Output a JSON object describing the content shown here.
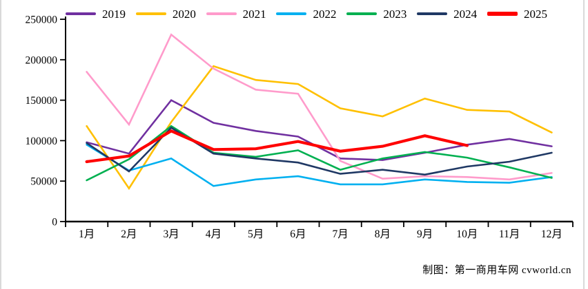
{
  "chart_data": {
    "type": "line",
    "title": "",
    "xlabel": "",
    "ylabel": "",
    "categories": [
      "1月",
      "2月",
      "3月",
      "4月",
      "5月",
      "6月",
      "7月",
      "8月",
      "9月",
      "10月",
      "11月",
      "12月"
    ],
    "y_ticks": [
      "0",
      "50000",
      "100000",
      "150000",
      "200000",
      "250000"
    ],
    "ylim": [
      0,
      250000
    ],
    "grid": false,
    "legend_position": "top",
    "series": [
      {
        "name": "2019",
        "color": "#7030A0",
        "values": [
          98000,
          84000,
          150000,
          122000,
          112000,
          105000,
          78000,
          76000,
          85000,
          95000,
          102000,
          93000
        ]
      },
      {
        "name": "2020",
        "color": "#FFC000",
        "values": [
          118000,
          41000,
          123000,
          192000,
          175000,
          170000,
          140000,
          130000,
          152000,
          138000,
          136000,
          110000
        ]
      },
      {
        "name": "2021",
        "color": "#FF9BCB",
        "values": [
          185000,
          120000,
          231000,
          189000,
          163000,
          158000,
          75000,
          53000,
          56000,
          55000,
          52000,
          60000
        ]
      },
      {
        "name": "2022",
        "color": "#00B0F0",
        "values": [
          95000,
          63000,
          78000,
          44000,
          52000,
          56000,
          46000,
          46000,
          52000,
          49000,
          48000,
          55000
        ]
      },
      {
        "name": "2023",
        "color": "#00B050",
        "values": [
          51000,
          77000,
          118000,
          85000,
          80000,
          88000,
          64000,
          78000,
          86000,
          79000,
          67000,
          54000
        ]
      },
      {
        "name": "2024",
        "color": "#1F3864",
        "values": [
          97000,
          62000,
          116000,
          84000,
          78000,
          73000,
          59000,
          64000,
          58000,
          68000,
          74000,
          85000
        ]
      },
      {
        "name": "2025",
        "color": "#FF0000",
        "values": [
          74000,
          81000,
          112000,
          89000,
          90000,
          99000,
          87000,
          93000,
          106000,
          94000
        ]
      }
    ]
  },
  "footer": {
    "attribution": "制图：第一商用车网 cvworld.cn"
  }
}
